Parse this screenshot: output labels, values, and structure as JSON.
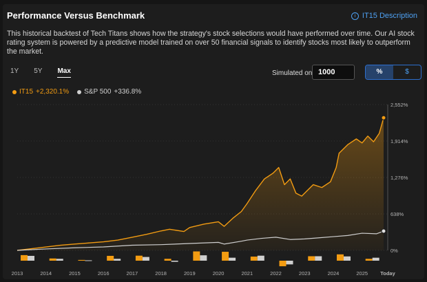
{
  "header": {
    "title": "Performance Versus Benchmark",
    "link_label": "IT15 Description"
  },
  "description": "This historical backtest of Tech Titans shows how the strategy's stock selections would have performed over time. Our AI stock rating system is powered by a predictive model trained on over 50 financial signals to identify stocks most likely to outperform the market.",
  "ranges": [
    "1Y",
    "5Y",
    "Max"
  ],
  "active_range": "Max",
  "simulated": {
    "label": "Simulated on",
    "value": "1000"
  },
  "units": {
    "percent": "%",
    "dollar": "$",
    "active": "%"
  },
  "legend": [
    {
      "name": "IT15",
      "value": "+2,320.1%",
      "color": "#f39c12"
    },
    {
      "name": "S&P 500",
      "value": "+336.8%",
      "color": "#d0d0d0"
    }
  ],
  "colors": {
    "it15": "#f39c12",
    "sp500": "#cfcfcf",
    "grid": "#3a3a3a"
  },
  "chart_data": {
    "type": "line",
    "ylim": [
      0,
      2552
    ],
    "y_ticks": [
      "2,552%",
      "1,914%",
      "1,276%",
      "638%",
      "0%"
    ],
    "y_tick_values": [
      2552,
      1914,
      1276,
      638,
      0
    ],
    "x_ticks": [
      "2013",
      "2014",
      "2015",
      "2016",
      "2017",
      "2018",
      "2019",
      "2020",
      "2021",
      "2022",
      "2023",
      "2024",
      "2025",
      "Today"
    ],
    "series": [
      {
        "name": "IT15",
        "x": [
          2013,
          2013.5,
          2014,
          2014.5,
          2015,
          2015.5,
          2016,
          2016.5,
          2017,
          2017.5,
          2018,
          2018.3,
          2018.8,
          2019,
          2019.5,
          2020,
          2020.2,
          2020.5,
          2020.8,
          2021,
          2021.3,
          2021.6,
          2021.9,
          2022.1,
          2022.3,
          2022.5,
          2022.7,
          2022.9,
          2023.1,
          2023.3,
          2023.6,
          2023.9,
          2024.1,
          2024.2,
          2024.5,
          2024.8,
          2025,
          2025.2,
          2025.4,
          2025.6,
          2025.75
        ],
        "values": [
          0,
          30,
          60,
          90,
          110,
          130,
          150,
          180,
          230,
          280,
          340,
          370,
          330,
          400,
          460,
          500,
          420,
          560,
          680,
          820,
          1050,
          1250,
          1350,
          1450,
          1150,
          1250,
          1000,
          950,
          1050,
          1150,
          1100,
          1200,
          1450,
          1700,
          1850,
          1950,
          1880,
          2000,
          1900,
          2050,
          2320
        ]
      },
      {
        "name": "S&P 500",
        "x": [
          2013,
          2014,
          2015,
          2016,
          2017,
          2018,
          2019,
          2020,
          2020.2,
          2020.8,
          2021,
          2021.5,
          2022,
          2022.5,
          2023,
          2023.5,
          2024,
          2024.5,
          2025,
          2025.5,
          2025.75
        ],
        "values": [
          0,
          25,
          45,
          60,
          90,
          100,
          120,
          140,
          110,
          160,
          180,
          210,
          230,
          190,
          200,
          220,
          240,
          260,
          300,
          290,
          336.8
        ]
      }
    ],
    "annual_returns": {
      "years": [
        "2013",
        "2014",
        "2015",
        "2016",
        "2017",
        "2018",
        "2019",
        "2020",
        "2021",
        "2022",
        "2023",
        "2024",
        "2025"
      ],
      "it15": [
        30,
        12,
        4,
        26,
        27,
        10,
        50,
        48,
        22,
        -30,
        24,
        34,
        10
      ],
      "sp500": [
        26,
        10,
        2,
        10,
        20,
        -6,
        29,
        16,
        27,
        -20,
        24,
        23,
        16
      ]
    }
  }
}
